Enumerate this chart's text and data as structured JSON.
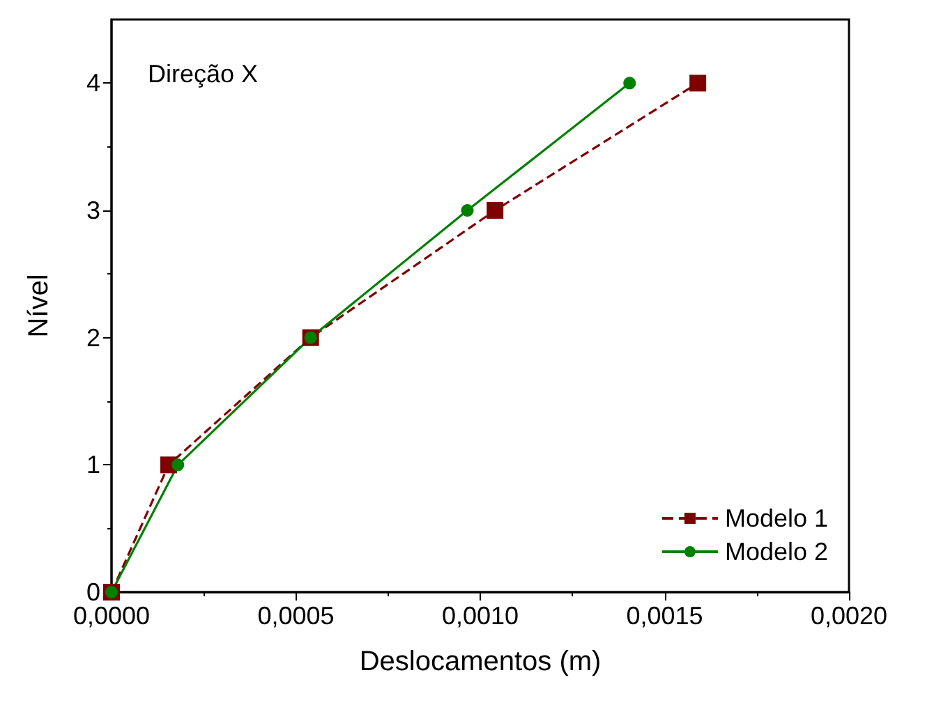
{
  "chart_data": {
    "type": "line",
    "xlabel": "Deslocamentos (m)",
    "ylabel": "Nível",
    "annotations": [
      "Direção X"
    ],
    "x": [
      0,
      0.000155,
      0.00054,
      0.00104,
      0.00159
    ],
    "series": [
      {
        "name": "Modelo 1",
        "color": "#800000",
        "line_style": "dashed",
        "marker": "square",
        "values": [
          0,
          1,
          2,
          3,
          4
        ]
      },
      {
        "name": "Modelo 2",
        "color": "#008000",
        "line_style": "solid",
        "marker": "circle",
        "x": [
          0,
          0.00018,
          0.00054,
          0.000965,
          0.001405
        ],
        "values": [
          0,
          1,
          2,
          3,
          4
        ]
      }
    ],
    "xlim": [
      0,
      0.002
    ],
    "xticks": [
      {
        "value": 0,
        "label": "0,0000"
      },
      {
        "value": 0.0005,
        "label": "0,0005"
      },
      {
        "value": 0.001,
        "label": "0,0010"
      },
      {
        "value": 0.0015,
        "label": "0,0015"
      },
      {
        "value": 0.002,
        "label": "0,0020"
      }
    ],
    "ylim": [
      0,
      4.5
    ],
    "yticks": [
      0,
      1,
      2,
      3,
      4
    ],
    "grid": false,
    "legend": "bottom right"
  }
}
